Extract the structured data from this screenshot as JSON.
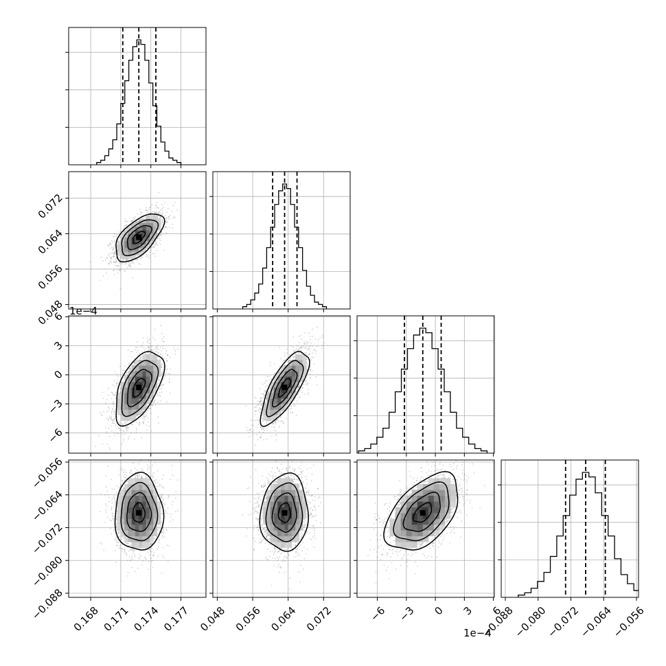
{
  "chart_data": {
    "type": "corner",
    "grid": true,
    "params": [
      {
        "range": [
          0.1658,
          0.1795
        ],
        "ticks": [
          0.168,
          0.171,
          0.174,
          0.177
        ],
        "tick_labels": [
          "0.168",
          "0.171",
          "0.174",
          "0.177"
        ],
        "quantiles": [
          0.1712,
          0.1728,
          0.1745
        ],
        "mean": 0.1728,
        "sd": 0.0012,
        "offset_text": ""
      },
      {
        "range": [
          0.047,
          0.078
        ],
        "ticks": [
          0.048,
          0.056,
          0.064,
          0.072
        ],
        "tick_labels": [
          "0.048",
          "0.056",
          "0.064",
          "0.072"
        ],
        "quantiles": [
          0.0605,
          0.0632,
          0.066
        ],
        "mean": 0.0632,
        "sd": 0.0027,
        "offset_text": ""
      },
      {
        "range": [
          -8.1,
          6.1
        ],
        "ticks": [
          -6,
          -3,
          0,
          3,
          6
        ],
        "tick_labels": [
          "−6",
          "−3",
          "0",
          "3",
          "6"
        ],
        "quantiles": [
          -3.2,
          -1.3,
          0.6
        ],
        "mean": -1.3,
        "sd": 1.9,
        "offset_text": "1e−4"
      },
      {
        "range": [
          -0.089,
          -0.0555
        ],
        "ticks": [
          -0.088,
          -0.08,
          -0.072,
          -0.064,
          -0.056
        ],
        "tick_labels": [
          "−0.088",
          "−0.080",
          "−0.072",
          "−0.064",
          "−0.056"
        ],
        "quantiles": [
          -0.0733,
          -0.0684,
          -0.0636
        ],
        "mean": -0.0684,
        "sd": 0.0047,
        "offset_text": ""
      }
    ],
    "hist_counts": [
      [
        1,
        2,
        4,
        7,
        11,
        18,
        27,
        37,
        46,
        52,
        55,
        53,
        46,
        36,
        26,
        17,
        10,
        6,
        3,
        2,
        1
      ],
      [
        1,
        2,
        4,
        7,
        11,
        18,
        27,
        36,
        46,
        52,
        55,
        53,
        46,
        36,
        27,
        17,
        10,
        6,
        3,
        2,
        1
      ],
      [
        1,
        2,
        4,
        7,
        11,
        18,
        27,
        37,
        46,
        52,
        55,
        53,
        46,
        37,
        27,
        18,
        11,
        7,
        4,
        2,
        1
      ],
      [
        1,
        2,
        4,
        7,
        11,
        18,
        27,
        36,
        45,
        52,
        55,
        53,
        46,
        36,
        27,
        17,
        10,
        6,
        3,
        2,
        1
      ]
    ],
    "correlations": [
      [
        1,
        0.6,
        0.55,
        0
      ],
      [
        0.6,
        1,
        0.75,
        0.05
      ],
      [
        0.55,
        0.75,
        1,
        0.5
      ],
      [
        0,
        0.05,
        0.5,
        1
      ]
    ]
  }
}
